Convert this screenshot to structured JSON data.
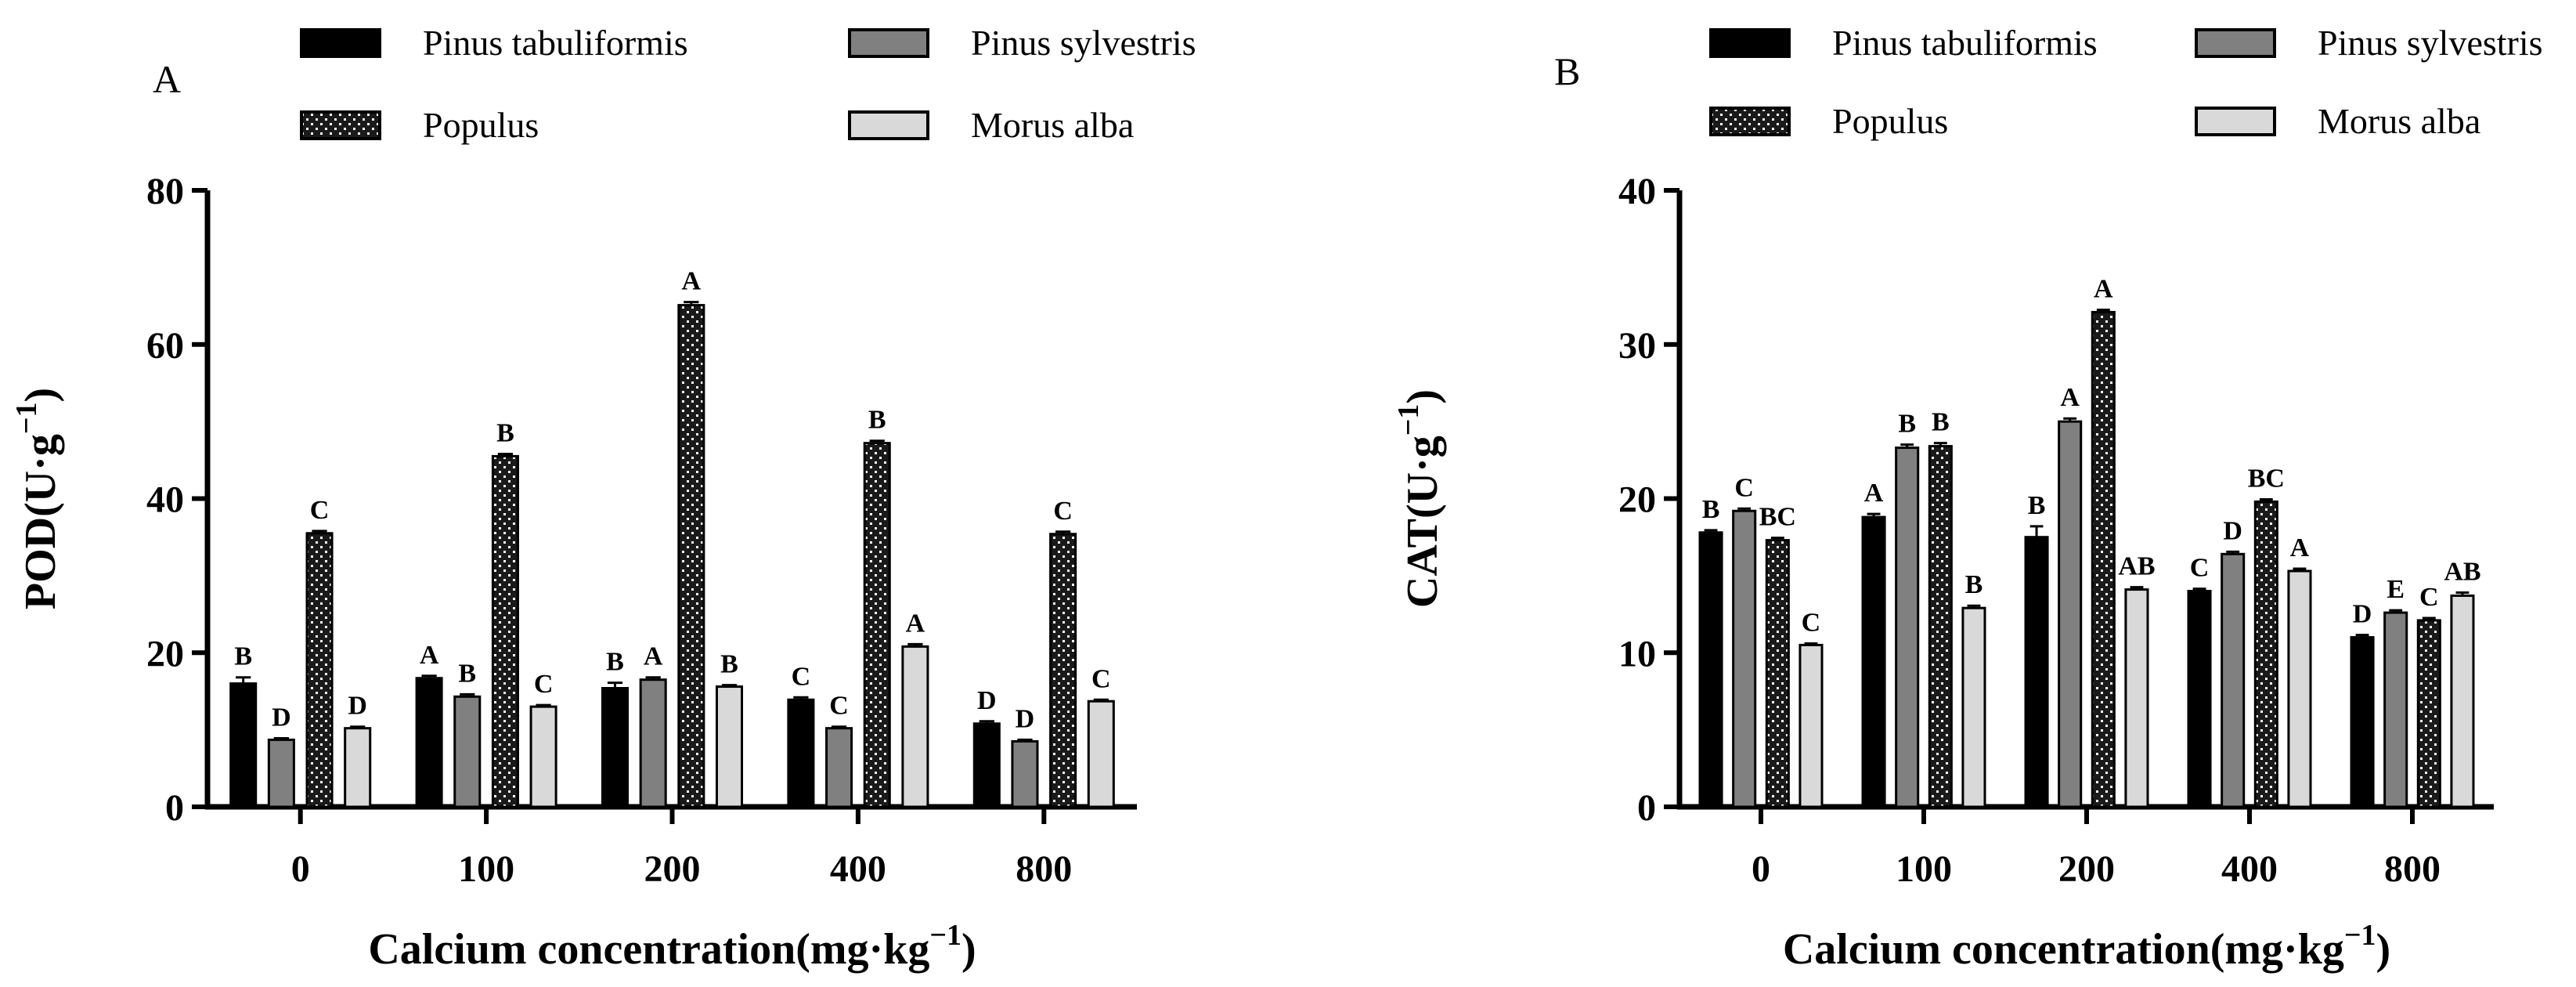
{
  "figure": {
    "colors": {
      "Pinus tabuliformis": "#000000",
      "Pinus sylvestris": "#808080",
      "Populus": "#1a1a1a",
      "Morus alba": "#d9d9d9"
    }
  },
  "chart_data": [
    {
      "type": "bar",
      "panel_label": "A",
      "legend_position": "top",
      "categories": [
        "0",
        "100",
        "200",
        "400",
        "800"
      ],
      "xlabel": "Calcium concentration(mg·kg",
      "xlabel_sup": "−1",
      "xlabel_close": ")",
      "ylabel": "POD(U·g",
      "ylabel_sup": "−1",
      "ylabel_close": ")",
      "ylim": [
        0,
        80
      ],
      "yticks": [
        0,
        20,
        40,
        60,
        80
      ],
      "grid": false,
      "series": [
        {
          "name": "Pinus tabuliformis",
          "values": [
            16.0,
            16.7,
            15.4,
            13.9,
            10.8
          ],
          "errors": [
            0.8,
            0.3,
            0.7,
            0.3,
            0.3
          ],
          "letters": [
            "B",
            "A",
            "B",
            "C",
            "D"
          ]
        },
        {
          "name": "Pinus sylvestris",
          "values": [
            8.7,
            14.3,
            16.5,
            10.2,
            8.5
          ],
          "errors": [
            0.2,
            0.3,
            0.3,
            0.2,
            0.2
          ],
          "letters": [
            "D",
            "B",
            "A",
            "C",
            "D"
          ]
        },
        {
          "name": "Populus",
          "values": [
            35.5,
            45.5,
            65.1,
            47.2,
            35.4
          ],
          "errors": [
            0.3,
            0.3,
            0.4,
            0.3,
            0.3
          ],
          "letters": [
            "C",
            "B",
            "A",
            "B",
            "C"
          ]
        },
        {
          "name": "Morus alba",
          "values": [
            10.2,
            13.0,
            15.6,
            20.8,
            13.7
          ],
          "errors": [
            0.2,
            0.2,
            0.2,
            0.3,
            0.2
          ],
          "letters": [
            "D",
            "C",
            "B",
            "A",
            "C"
          ]
        }
      ]
    },
    {
      "type": "bar",
      "panel_label": "B",
      "legend_position": "top",
      "categories": [
        "0",
        "100",
        "200",
        "400",
        "800"
      ],
      "xlabel": "Calcium concentration(mg·kg",
      "xlabel_sup": "−1",
      "xlabel_close": ")",
      "ylabel": "CAT(U·g",
      "ylabel_sup": "−1",
      "ylabel_close": ")",
      "ylim": [
        0,
        40
      ],
      "yticks": [
        0,
        10,
        20,
        30,
        40
      ],
      "grid": false,
      "series": [
        {
          "name": "Pinus tabuliformis",
          "values": [
            17.8,
            18.8,
            17.5,
            14.0,
            11.0
          ],
          "errors": [
            0.15,
            0.2,
            0.7,
            0.15,
            0.15
          ],
          "letters": [
            "B",
            "A",
            "B",
            "C",
            "D"
          ]
        },
        {
          "name": "Pinus sylvestris",
          "values": [
            19.2,
            23.3,
            25.0,
            16.4,
            12.6
          ],
          "errors": [
            0.15,
            0.2,
            0.2,
            0.15,
            0.15
          ],
          "letters": [
            "C",
            "B",
            "A",
            "D",
            "E"
          ]
        },
        {
          "name": "Populus",
          "values": [
            17.3,
            23.4,
            32.1,
            19.8,
            12.1
          ],
          "errors": [
            0.15,
            0.2,
            0.15,
            0.15,
            0.15
          ],
          "letters": [
            "BC",
            "B",
            "A",
            "BC",
            "C"
          ]
        },
        {
          "name": "Morus alba",
          "values": [
            10.5,
            12.9,
            14.1,
            15.3,
            13.7
          ],
          "errors": [
            0.1,
            0.15,
            0.15,
            0.15,
            0.2
          ],
          "letters": [
            "C",
            "B",
            "AB",
            "A",
            "AB"
          ]
        }
      ]
    }
  ]
}
